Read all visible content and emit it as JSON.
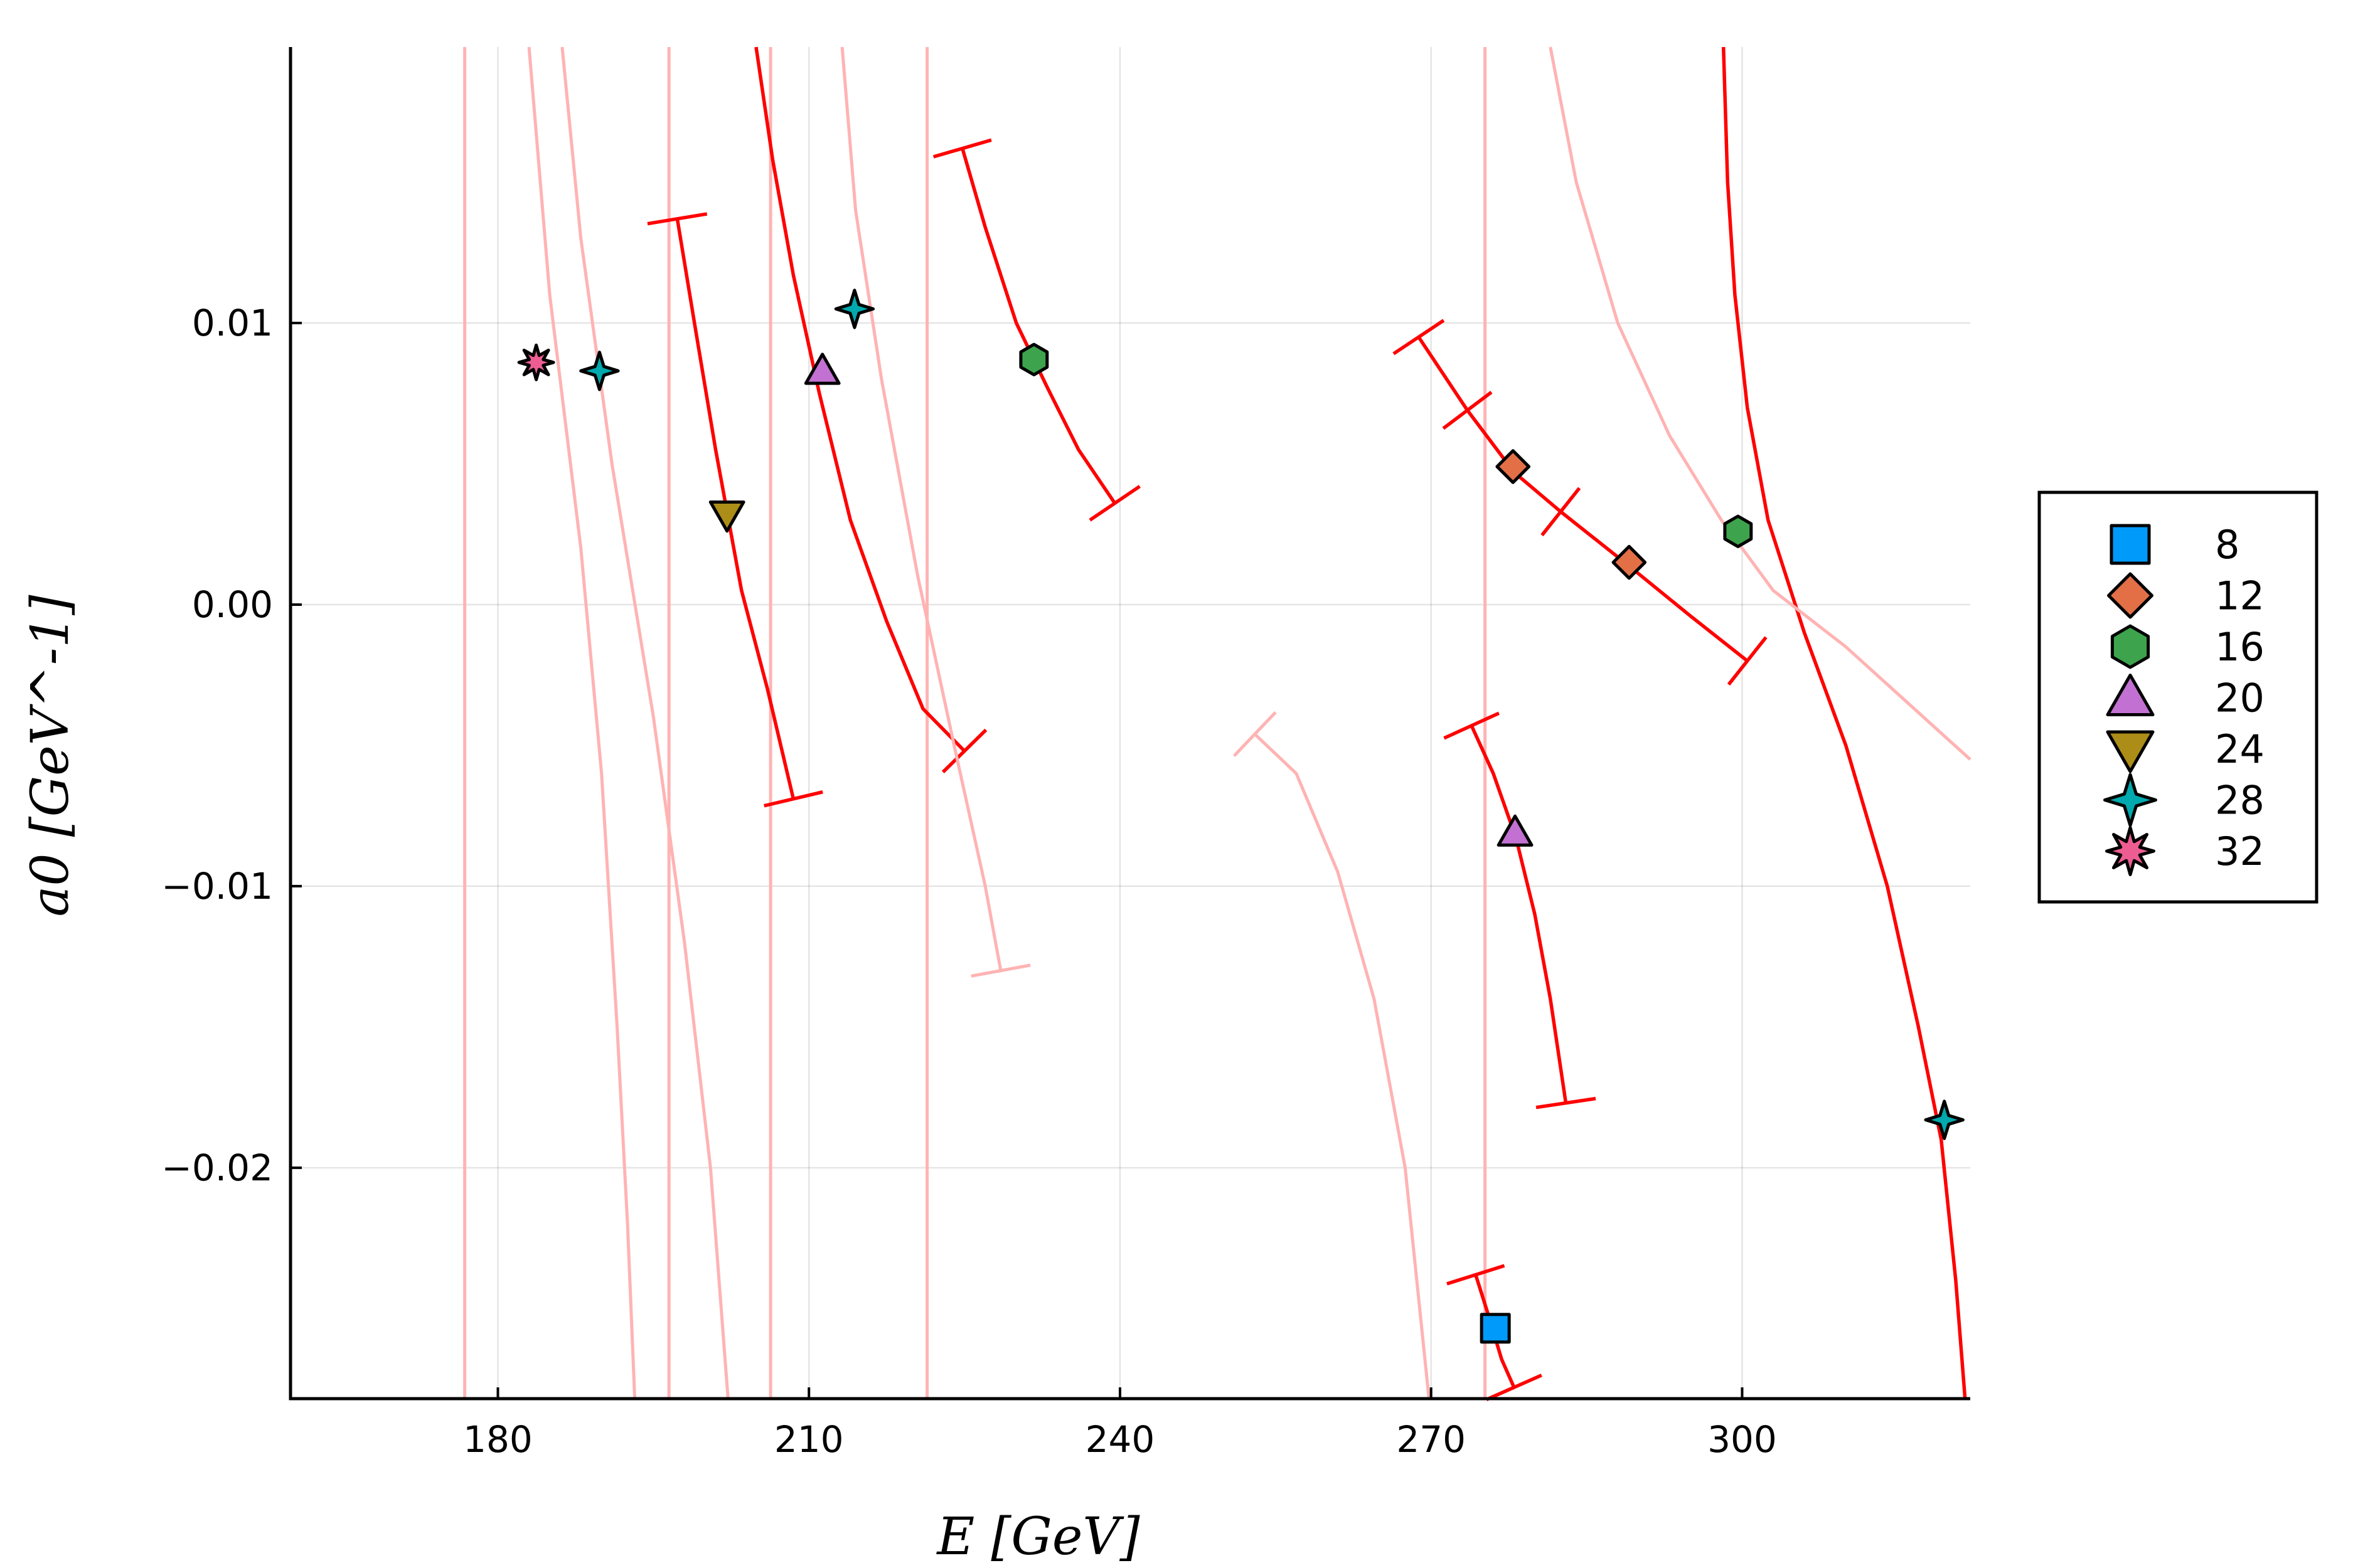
{
  "chart_data": {
    "type": "scatter",
    "xlabel": "E  [GeV]",
    "ylabel": "a0  [GeV^-1]",
    "xlim": [
      160,
      322
    ],
    "ylim": [
      -0.0282,
      0.0198
    ],
    "xticks": [
      180,
      210,
      240,
      270,
      300
    ],
    "xtick_labels": [
      "180",
      "210",
      "240",
      "270",
      "300"
    ],
    "yticks": [
      0.01,
      0.0,
      -0.01,
      -0.02
    ],
    "ytick_labels": [
      "0.01",
      "0.00",
      "−0.01",
      "−0.02"
    ],
    "grid": true,
    "legend_position": "right",
    "series": [
      {
        "name": "8",
        "marker": "square",
        "color": "#009AFA",
        "points": [
          [
            276.2,
            -0.0257
          ]
        ]
      },
      {
        "name": "12",
        "marker": "diamond",
        "color": "#E26F46",
        "points": [
          [
            277.9,
            0.0049
          ],
          [
            289.1,
            0.0015
          ]
        ]
      },
      {
        "name": "16",
        "marker": "hexagon",
        "color": "#3DA44D",
        "points": [
          [
            231.7,
            0.0087
          ],
          [
            299.6,
            0.0026
          ]
        ]
      },
      {
        "name": "20",
        "marker": "triangle-up",
        "color": "#C271D2",
        "points": [
          [
            211.3,
            0.0083
          ],
          [
            278.1,
            -0.0081
          ]
        ]
      },
      {
        "name": "24",
        "marker": "triangle-down",
        "color": "#AC8D18",
        "points": [
          [
            202.1,
            0.0032
          ]
        ]
      },
      {
        "name": "28",
        "marker": "star4",
        "color": "#00A9AD",
        "points": [
          [
            189.8,
            0.0083
          ],
          [
            214.4,
            0.0105
          ],
          [
            319.5,
            -0.0183
          ]
        ]
      },
      {
        "name": "32",
        "marker": "star8",
        "color": "#ED5D92",
        "points": [
          [
            183.7,
            0.0086
          ]
        ]
      }
    ],
    "curves": [
      {
        "style": "solid",
        "color": "#FF0000",
        "points": [
          [
            197.3,
            0.0137
          ],
          [
            199.0,
            0.0099
          ],
          [
            201.0,
            0.0055
          ],
          [
            203.5,
            0.0005
          ],
          [
            206.0,
            -0.003
          ],
          [
            208.5,
            -0.0069
          ]
        ],
        "caps": "both"
      },
      {
        "style": "solid",
        "color": "#FF0000",
        "points": [
          [
            204.9,
            0.0198
          ],
          [
            206.5,
            0.0158
          ],
          [
            208.5,
            0.0117
          ],
          [
            211.0,
            0.0075
          ],
          [
            214.0,
            0.003
          ],
          [
            217.5,
            -0.0006
          ],
          [
            221.0,
            -0.0037
          ],
          [
            225.0,
            -0.0052
          ]
        ],
        "caps": "end"
      },
      {
        "style": "solid",
        "color": "#FF0000",
        "points": [
          [
            224.8,
            0.0162
          ],
          [
            227.0,
            0.0134
          ],
          [
            230.0,
            0.01
          ],
          [
            233.0,
            0.0077
          ],
          [
            236.0,
            0.0055
          ],
          [
            239.5,
            0.0036
          ]
        ],
        "caps": "both"
      },
      {
        "style": "solid",
        "color": "#FF0000",
        "points": [
          [
            268.8,
            0.0095
          ],
          [
            273.5,
            0.0069
          ],
          [
            278.0,
            0.0047
          ],
          [
            282.5,
            0.0033
          ],
          [
            289.0,
            0.0014
          ],
          [
            295.0,
            -0.0004
          ],
          [
            300.5,
            -0.002
          ]
        ],
        "caps": "both",
        "mid_caps": [
          [
            273.5,
            0.0069
          ],
          [
            282.5,
            0.0033
          ]
        ]
      },
      {
        "style": "solid",
        "color": "#FF0000",
        "points": [
          [
            273.9,
            -0.0043
          ],
          [
            276.0,
            -0.006
          ],
          [
            278.2,
            -0.0083
          ],
          [
            280.0,
            -0.011
          ],
          [
            281.5,
            -0.014
          ],
          [
            283.0,
            -0.0177
          ]
        ],
        "caps": "both"
      },
      {
        "style": "solid",
        "color": "#FF0000",
        "points": [
          [
            274.3,
            -0.0238
          ],
          [
            275.5,
            -0.0252
          ],
          [
            276.8,
            -0.0268
          ],
          [
            278.0,
            -0.0278
          ]
        ],
        "caps": "both"
      },
      {
        "style": "solid",
        "color": "#FF0000",
        "points": [
          [
            298.2,
            0.0198
          ],
          [
            298.6,
            0.015
          ],
          [
            299.3,
            0.011
          ],
          [
            300.5,
            0.007
          ],
          [
            302.5,
            0.003
          ],
          [
            306.0,
            -0.001
          ],
          [
            310.0,
            -0.005
          ],
          [
            314.0,
            -0.01
          ],
          [
            317.0,
            -0.015
          ],
          [
            319.2,
            -0.019
          ],
          [
            320.6,
            -0.024
          ],
          [
            321.5,
            -0.0282
          ]
        ],
        "caps": "none"
      },
      {
        "style": "faint",
        "color": "#FFB3B3",
        "points": [
          [
            183.0,
            0.0198
          ],
          [
            185.0,
            0.011
          ],
          [
            188.0,
            0.002
          ],
          [
            190.0,
            -0.006
          ],
          [
            191.5,
            -0.015
          ],
          [
            192.5,
            -0.022
          ],
          [
            193.2,
            -0.0282
          ]
        ],
        "caps": "none"
      },
      {
        "style": "faint",
        "color": "#FFB3B3",
        "points": [
          [
            186.2,
            0.0198
          ],
          [
            188.0,
            0.013
          ],
          [
            191.0,
            0.005
          ],
          [
            195.0,
            -0.004
          ],
          [
            198.0,
            -0.012
          ],
          [
            200.5,
            -0.02
          ],
          [
            202.2,
            -0.0282
          ]
        ],
        "caps": "none"
      },
      {
        "style": "faint",
        "color": "#FFB3B3",
        "points": [
          [
            213.2,
            0.0198
          ],
          [
            214.5,
            0.014
          ],
          [
            217.0,
            0.008
          ],
          [
            220.5,
            0.001
          ],
          [
            224.0,
            -0.005
          ],
          [
            227.0,
            -0.01
          ],
          [
            228.5,
            -0.013
          ]
        ],
        "caps": "end"
      },
      {
        "style": "faint",
        "color": "#FFB3B3",
        "points": [
          [
            253.0,
            -0.0046
          ],
          [
            257.0,
            -0.006
          ],
          [
            261.0,
            -0.0095
          ],
          [
            264.5,
            -0.014
          ],
          [
            267.5,
            -0.02
          ],
          [
            269.8,
            -0.0282
          ]
        ],
        "caps": "start"
      },
      {
        "style": "faint",
        "color": "#FFB3B3",
        "points": [
          [
            281.5,
            0.0198
          ],
          [
            284.0,
            0.015
          ],
          [
            288.0,
            0.01
          ],
          [
            293.0,
            0.006
          ],
          [
            298.0,
            0.003
          ],
          [
            303.0,
            0.0005
          ],
          [
            310.0,
            -0.0015
          ],
          [
            316.0,
            -0.0035
          ],
          [
            322.0,
            -0.0055
          ]
        ],
        "caps": "none"
      }
    ],
    "vertical_lines": [
      176.8,
      196.5,
      206.3,
      221.4,
      275.2
    ]
  }
}
